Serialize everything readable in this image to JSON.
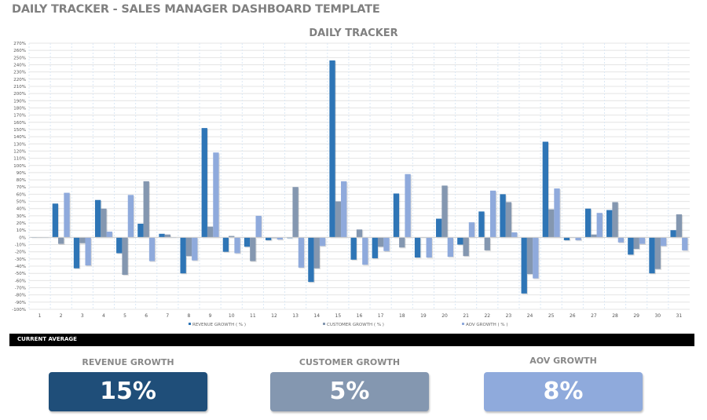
{
  "page_title": "DAILY TRACKER - SALES MANAGER DASHBOARD TEMPLATE",
  "colors": {
    "revenue": "#2e75b6",
    "customer": "#8497b0",
    "aov": "#8faadc",
    "revenue_card": "#1f4e79"
  },
  "chart_data": {
    "type": "bar",
    "title": "DAILY TRACKER",
    "xlabel": "",
    "ylabel": "",
    "ylim": [
      -100,
      270
    ],
    "ytick_step": 10,
    "ytick_format": "percent",
    "grid": true,
    "legend_placement": "bottom",
    "categories": [
      "1",
      "2",
      "3",
      "4",
      "5",
      "6",
      "7",
      "8",
      "9",
      "10",
      "11",
      "12",
      "13",
      "14",
      "15",
      "16",
      "17",
      "18",
      "19",
      "20",
      "21",
      "22",
      "23",
      "24",
      "25",
      "26",
      "27",
      "28",
      "29",
      "30",
      "31"
    ],
    "series": [
      {
        "name": "REVENUE GROWTH  ( % )",
        "values": [
          0,
          47,
          -43,
          52,
          -22,
          19,
          5,
          -50,
          152,
          -20,
          -13,
          -4,
          -1,
          -62,
          246,
          -31,
          -29,
          61,
          -28,
          26,
          -10,
          36,
          60,
          -78,
          133,
          -4,
          40,
          38,
          -24,
          -50,
          10
        ]
      },
      {
        "name": "CUSTOMER GROWTH  ( % )",
        "values": [
          0,
          -9,
          -8,
          40,
          -52,
          78,
          4,
          -26,
          15,
          2,
          -33,
          -1,
          70,
          -43,
          50,
          11,
          -13,
          -14,
          0,
          72,
          -26,
          -18,
          49,
          -51,
          39,
          0,
          4,
          49,
          -16,
          -44,
          32
        ]
      },
      {
        "name": "AOV GROWTH  ( % )",
        "values": [
          0,
          62,
          -39,
          8,
          59,
          -33,
          0,
          -32,
          118,
          -22,
          30,
          -3,
          -42,
          -12,
          78,
          -38,
          -19,
          88,
          -28,
          -27,
          21,
          65,
          7,
          -57,
          68,
          -4,
          34,
          -7,
          -9,
          -12,
          -18
        ]
      }
    ]
  },
  "current_average": {
    "header": "CURRENT AVERAGE",
    "cards": [
      {
        "label": "REVENUE GROWTH",
        "value": "15%"
      },
      {
        "label": "CUSTOMER GROWTH",
        "value": "5%"
      },
      {
        "label": "AOV GROWTH",
        "value": "8%"
      }
    ]
  }
}
